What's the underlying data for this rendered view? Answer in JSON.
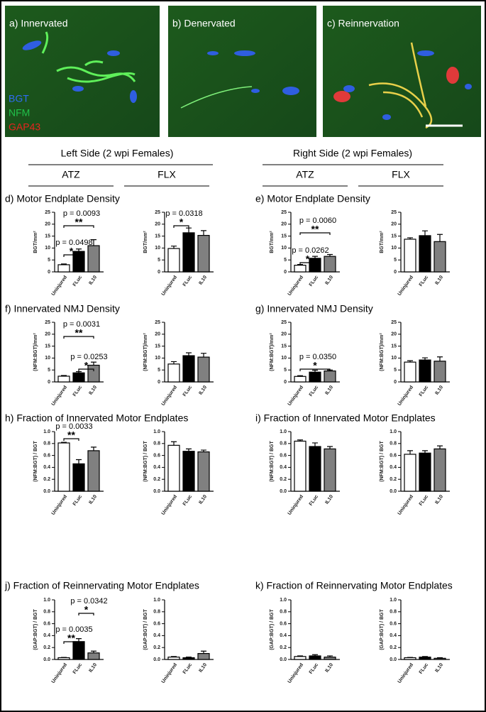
{
  "images": [
    {
      "label": "a) Innervated"
    },
    {
      "label": "b) Denervated"
    },
    {
      "label": "c) Reinnervation"
    }
  ],
  "stain_legend": [
    {
      "text": "BGT",
      "color": "#2f6cf5"
    },
    {
      "text": "NFM",
      "color": "#21c04a"
    },
    {
      "text": "GAP43",
      "color": "#e8231f"
    }
  ],
  "sides": [
    {
      "title": "Left Side (2 wpi Females)",
      "groups": [
        "ATZ",
        "FLX"
      ]
    },
    {
      "title": "Right Side (2 wpi Females)",
      "groups": [
        "ATZ",
        "FLX"
      ]
    }
  ],
  "panel_titles": [
    "d) Motor Endplate Density",
    "e) Motor Endplate Density",
    "f) Innervated NMJ Density",
    "g) Innervated NMJ Density",
    "h) Fraction of Innervated Motor Endplates",
    "i) Fraction of Innervated Motor Endplates",
    "j) Fraction of Reinnervating Motor Endplates",
    "k) Fraction of Reinnervating Motor Endplates"
  ],
  "chart_data": [
    {
      "type": "bar",
      "ylabel": "BGT/mm²",
      "categories": [
        "Uninjured",
        "FLuc",
        "IL10"
      ],
      "values": [
        3.0,
        8.6,
        11.0
      ],
      "errors": [
        0.3,
        1.0,
        2.5
      ],
      "colors": [
        "#ffffff",
        "#000000",
        "#808080"
      ],
      "ylim": [
        0,
        25
      ],
      "yticks": [
        0,
        5,
        10,
        15,
        20,
        25
      ],
      "annotations": [
        {
          "text": "p = 0.0093",
          "stars": "**"
        },
        {
          "text": "p = 0.0498",
          "stars": "*"
        }
      ]
    },
    {
      "type": "bar",
      "ylabel": "BGT/mm²",
      "categories": [
        "Uninjured",
        "FLuc",
        "IL10"
      ],
      "values": [
        9.8,
        16.4,
        15.3
      ],
      "errors": [
        1.0,
        2.0,
        2.0
      ],
      "colors": [
        "#ffffff",
        "#000000",
        "#808080"
      ],
      "ylim": [
        0,
        25
      ],
      "yticks": [
        0,
        5,
        10,
        15,
        20,
        25
      ],
      "annotations": [
        {
          "text": "p = 0.0318",
          "stars": "*"
        }
      ]
    },
    {
      "type": "bar",
      "ylabel": "BGT/mm²",
      "categories": [
        "Uninjured",
        "FLuc",
        "IL10"
      ],
      "values": [
        2.8,
        5.7,
        6.5
      ],
      "errors": [
        0.3,
        0.8,
        0.8
      ],
      "colors": [
        "#ffffff",
        "#000000",
        "#808080"
      ],
      "ylim": [
        0,
        25
      ],
      "yticks": [
        0,
        5,
        10,
        15,
        20,
        25
      ],
      "annotations": [
        {
          "text": "p = 0.0060",
          "stars": "**"
        },
        {
          "text": "p = 0.0262",
          "stars": "*"
        }
      ]
    },
    {
      "type": "bar",
      "ylabel": "BGT/mm²",
      "categories": [
        "Uninjured",
        "FLuc",
        "IL10"
      ],
      "values": [
        13.7,
        15.2,
        12.7
      ],
      "errors": [
        0.6,
        2.0,
        3.0
      ],
      "colors": [
        "#ffffff",
        "#000000",
        "#808080"
      ],
      "ylim": [
        0,
        25
      ],
      "yticks": [
        0,
        5,
        10,
        15,
        20,
        25
      ]
    },
    {
      "type": "bar",
      "ylabel": "(NFM:BGT)/mm²",
      "categories": [
        "Uninjured",
        "FLuc",
        "IL10"
      ],
      "values": [
        2.4,
        3.8,
        7.0
      ],
      "errors": [
        0.3,
        0.5,
        1.3
      ],
      "colors": [
        "#ffffff",
        "#000000",
        "#808080"
      ],
      "ylim": [
        0,
        25
      ],
      "yticks": [
        0,
        5,
        10,
        15,
        20,
        25
      ],
      "annotations": [
        {
          "text": "p = 0.0031",
          "stars": "**"
        },
        {
          "text": "p = 0.0253",
          "stars": "*"
        }
      ]
    },
    {
      "type": "bar",
      "ylabel": "(NFM:BGT)/mm²",
      "categories": [
        "Uninjured",
        "FLuc",
        "IL10"
      ],
      "values": [
        7.5,
        11.0,
        10.4
      ],
      "errors": [
        1.0,
        1.2,
        1.6
      ],
      "colors": [
        "#ffffff",
        "#000000",
        "#808080"
      ],
      "ylim": [
        0,
        25
      ],
      "yticks": [
        0,
        5,
        10,
        15,
        20,
        25
      ]
    },
    {
      "type": "bar",
      "ylabel": "(NFM:BGT)/mm²",
      "categories": [
        "Uninjured",
        "FLuc",
        "IL10"
      ],
      "values": [
        2.3,
        4.1,
        4.6
      ],
      "errors": [
        0.3,
        0.8,
        0.4
      ],
      "colors": [
        "#ffffff",
        "#000000",
        "#808080"
      ],
      "ylim": [
        0,
        25
      ],
      "yticks": [
        0,
        5,
        10,
        15,
        20,
        25
      ],
      "annotations": [
        {
          "text": "p = 0.0350",
          "stars": "*"
        }
      ]
    },
    {
      "type": "bar",
      "ylabel": "(NFM:BGT)/mm²",
      "categories": [
        "Uninjured",
        "FLuc",
        "IL10"
      ],
      "values": [
        8.3,
        9.2,
        8.7
      ],
      "errors": [
        0.6,
        0.9,
        1.8
      ],
      "colors": [
        "#ffffff",
        "#000000",
        "#808080"
      ],
      "ylim": [
        0,
        25
      ],
      "yticks": [
        0,
        5,
        10,
        15,
        20,
        25
      ]
    },
    {
      "type": "bar",
      "ylabel": "(NFM:BGT) / BGT",
      "categories": [
        "Uninjured",
        "FLuc",
        "IL10"
      ],
      "values": [
        0.81,
        0.46,
        0.68
      ],
      "errors": [
        0.01,
        0.07,
        0.06
      ],
      "colors": [
        "#ffffff",
        "#000000",
        "#808080"
      ],
      "ylim": [
        0,
        1
      ],
      "yticks": [
        {
          "value": 0,
          "label": "0.0"
        },
        0.2,
        0.4,
        0.6,
        0.8,
        {
          "value": 1,
          "label": "1.0"
        }
      ],
      "annotations": [
        {
          "text": "p = 0.0033",
          "stars": "**"
        }
      ]
    },
    {
      "type": "bar",
      "ylabel": "(NFM:BGT) / BGT",
      "categories": [
        "Uninjured",
        "FLuc",
        "IL10"
      ],
      "values": [
        0.77,
        0.67,
        0.66
      ],
      "errors": [
        0.06,
        0.04,
        0.03
      ],
      "colors": [
        "#ffffff",
        "#000000",
        "#808080"
      ],
      "ylim": [
        0,
        1
      ],
      "yticks": [
        {
          "value": 0,
          "label": "0.0"
        },
        0.2,
        0.4,
        0.6,
        0.8,
        {
          "value": 1,
          "label": "1.0"
        }
      ]
    },
    {
      "type": "bar",
      "ylabel": "(NFM:BGT) / BGT",
      "categories": [
        "Uninjured",
        "FLuc",
        "IL10"
      ],
      "values": [
        0.84,
        0.75,
        0.71
      ],
      "errors": [
        0.02,
        0.06,
        0.04
      ],
      "colors": [
        "#ffffff",
        "#000000",
        "#808080"
      ],
      "ylim": [
        0,
        1
      ],
      "yticks": [
        {
          "value": 0,
          "label": "0.0"
        },
        0.2,
        0.4,
        0.6,
        0.8,
        {
          "value": 1,
          "label": "1.0"
        }
      ]
    },
    {
      "type": "bar",
      "ylabel": "(NFM:BGT) / BGT",
      "categories": [
        "Uninjured",
        "FLuc",
        "IL10"
      ],
      "values": [
        0.62,
        0.64,
        0.71
      ],
      "errors": [
        0.06,
        0.04,
        0.05
      ],
      "colors": [
        "#ffffff",
        "#000000",
        "#808080"
      ],
      "ylim": [
        0,
        1
      ],
      "yticks": [
        {
          "value": 0,
          "label": "0.0"
        },
        0.2,
        0.4,
        0.6,
        0.8,
        {
          "value": 1,
          "label": "1.0"
        }
      ]
    },
    {
      "type": "bar",
      "ylabel": "(GAP:BGT) / BGT",
      "categories": [
        "Uninjured",
        "FLuc",
        "IL10"
      ],
      "values": [
        0.03,
        0.3,
        0.11
      ],
      "errors": [
        0.005,
        0.05,
        0.03
      ],
      "colors": [
        "#ffffff",
        "#000000",
        "#808080"
      ],
      "ylim": [
        0,
        1
      ],
      "yticks": [
        {
          "value": 0,
          "label": "0.0"
        },
        0.2,
        0.4,
        0.6,
        0.8,
        {
          "value": 1,
          "label": "1.0"
        }
      ],
      "annotations": [
        {
          "text": "p = 0.0342",
          "stars": "*"
        },
        {
          "text": "p = 0.0035",
          "stars": "**"
        }
      ]
    },
    {
      "type": "bar",
      "ylabel": "(GAP:BGT) / BGT",
      "categories": [
        "Uninjured",
        "FLuc",
        "IL10"
      ],
      "values": [
        0.04,
        0.03,
        0.1
      ],
      "errors": [
        0.01,
        0.01,
        0.04
      ],
      "colors": [
        "#ffffff",
        "#000000",
        "#808080"
      ],
      "ylim": [
        0,
        1
      ],
      "yticks": [
        {
          "value": 0,
          "label": "0.0"
        },
        0.2,
        0.4,
        0.6,
        0.8,
        {
          "value": 1,
          "label": "1.0"
        }
      ]
    },
    {
      "type": "bar",
      "ylabel": "(GAP:BGT) / BGT",
      "categories": [
        "Uninjured",
        "FLuc",
        "IL10"
      ],
      "values": [
        0.05,
        0.06,
        0.04
      ],
      "errors": [
        0.01,
        0.02,
        0.02
      ],
      "colors": [
        "#ffffff",
        "#000000",
        "#808080"
      ],
      "ylim": [
        0,
        1
      ],
      "yticks": [
        {
          "value": 0,
          "label": "0.0"
        },
        0.2,
        0.4,
        0.6,
        0.8,
        {
          "value": 1,
          "label": "1.0"
        }
      ]
    },
    {
      "type": "bar",
      "ylabel": "(GAP:BGT) / BGT",
      "categories": [
        "Uninjured",
        "FLuc",
        "IL10"
      ],
      "values": [
        0.03,
        0.04,
        0.02
      ],
      "errors": [
        0.005,
        0.01,
        0.01
      ],
      "colors": [
        "#ffffff",
        "#000000",
        "#808080"
      ],
      "ylim": [
        0,
        1
      ],
      "yticks": [
        {
          "value": 0,
          "label": "0.0"
        },
        0.2,
        0.4,
        0.6,
        0.8,
        {
          "value": 1,
          "label": "1.0"
        }
      ]
    }
  ]
}
